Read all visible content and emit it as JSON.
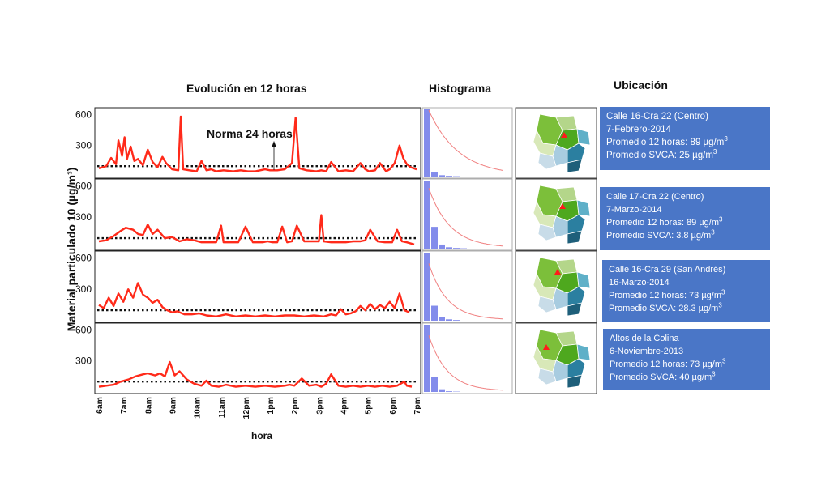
{
  "headers": {
    "evolution": "Evolución en 12 horas",
    "histogram": "Histograma",
    "location": "Ubicación"
  },
  "ylabel": "Material particulado 10 (µg/m³)",
  "xlabel": "hora",
  "norma_label": "Norma 24 horas",
  "colors": {
    "series": "#ff2a1a",
    "hist_bar": "#6d78e8",
    "hist_curve": "#f08080",
    "info_box": "#4a76c7"
  },
  "chart_data": {
    "type": "line",
    "x_ticks": [
      "6am",
      "7am",
      "8am",
      "9am",
      "10am",
      "11am",
      "12pm",
      "1pm",
      "2pm",
      "3pm",
      "4pm",
      "5pm",
      "6pm",
      "7pm"
    ],
    "y_ticks": [
      600,
      300
    ],
    "ylim": [
      0,
      650
    ],
    "norma_value": 100,
    "panels": [
      {
        "name": "Calle 16-Cra 22 (Centro) 7-Febrero-2014",
        "x": [
          6,
          6.3,
          6.5,
          6.7,
          6.8,
          6.95,
          7.05,
          7.15,
          7.3,
          7.45,
          7.6,
          7.8,
          8.0,
          8.2,
          8.4,
          8.6,
          8.75,
          9.0,
          9.25,
          9.35,
          9.45,
          9.7,
          10.0,
          10.2,
          10.4,
          10.6,
          10.8,
          11.1,
          11.5,
          11.8,
          12.1,
          12.4,
          12.6,
          12.8,
          13.0,
          13.3,
          13.6,
          13.9,
          14.05,
          14.2,
          14.5,
          14.9,
          15.1,
          15.3,
          15.5,
          15.8,
          16.1,
          16.4,
          16.7,
          16.9,
          17.05,
          17.3,
          17.5,
          17.75,
          17.9,
          18.1,
          18.3,
          18.45,
          18.6,
          18.75,
          19.0
        ],
        "y": [
          80,
          100,
          180,
          120,
          350,
          200,
          380,
          170,
          290,
          150,
          170,
          110,
          260,
          140,
          90,
          190,
          130,
          70,
          60,
          580,
          70,
          60,
          50,
          150,
          60,
          70,
          50,
          60,
          50,
          60,
          50,
          50,
          60,
          70,
          60,
          60,
          70,
          130,
          570,
          80,
          60,
          50,
          60,
          50,
          140,
          50,
          60,
          50,
          130,
          70,
          50,
          60,
          130,
          50,
          70,
          130,
          300,
          180,
          120,
          90,
          70
        ]
      },
      {
        "name": "Calle 17-Cra 22 (Centro) 7-Marzo-2014",
        "x": [
          6,
          6.3,
          6.6,
          6.9,
          7.1,
          7.4,
          7.6,
          7.8,
          8.0,
          8.2,
          8.4,
          8.7,
          9.0,
          9.3,
          9.6,
          9.9,
          10.2,
          10.5,
          10.8,
          11.0,
          11.1,
          11.3,
          11.7,
          12.0,
          12.3,
          12.5,
          12.7,
          12.9,
          13.1,
          13.3,
          13.5,
          13.7,
          13.9,
          14.1,
          14.4,
          14.7,
          15.0,
          15.1,
          15.2,
          15.5,
          15.8,
          16.1,
          16.4,
          16.7,
          16.9,
          17.1,
          17.4,
          17.7,
          18.0,
          18.2,
          18.4,
          18.6,
          18.9
        ],
        "y": [
          70,
          80,
          120,
          170,
          200,
          180,
          140,
          130,
          230,
          140,
          180,
          100,
          110,
          70,
          90,
          80,
          60,
          60,
          60,
          220,
          60,
          60,
          60,
          210,
          60,
          60,
          60,
          70,
          60,
          60,
          210,
          60,
          70,
          220,
          70,
          70,
          70,
          320,
          70,
          60,
          60,
          60,
          70,
          70,
          80,
          180,
          70,
          60,
          60,
          180,
          70,
          60,
          40
        ]
      },
      {
        "name": "Calle 16-Cra 29 (San Andrés) 16-Marzo-2014",
        "x": [
          6,
          6.2,
          6.4,
          6.6,
          6.8,
          7.0,
          7.2,
          7.4,
          7.6,
          7.8,
          8.0,
          8.2,
          8.4,
          8.6,
          8.8,
          9.0,
          9.2,
          9.5,
          9.8,
          10.1,
          10.4,
          10.8,
          11.2,
          11.6,
          12.0,
          12.4,
          12.8,
          13.2,
          13.6,
          14.0,
          14.4,
          14.8,
          15.2,
          15.5,
          15.7,
          15.9,
          16.1,
          16.3,
          16.5,
          16.7,
          16.9,
          17.1,
          17.3,
          17.5,
          17.7,
          17.9,
          18.1,
          18.3,
          18.5,
          18.7
        ],
        "y": [
          150,
          120,
          220,
          140,
          260,
          180,
          300,
          220,
          360,
          250,
          220,
          170,
          200,
          130,
          100,
          80,
          90,
          60,
          60,
          70,
          50,
          40,
          60,
          40,
          50,
          40,
          50,
          40,
          50,
          50,
          40,
          50,
          40,
          60,
          50,
          110,
          60,
          70,
          90,
          140,
          100,
          160,
          110,
          150,
          120,
          180,
          120,
          260,
          100,
          80
        ]
      },
      {
        "name": "Altos de la Colina 6-Noviembre-2013",
        "x": [
          6,
          6.3,
          6.6,
          6.9,
          7.2,
          7.5,
          7.8,
          8.0,
          8.3,
          8.5,
          8.7,
          8.9,
          9.1,
          9.3,
          9.6,
          9.9,
          10.2,
          10.4,
          10.6,
          10.9,
          11.2,
          11.6,
          12.0,
          12.4,
          12.8,
          13.2,
          13.6,
          13.8,
          14.0,
          14.3,
          14.6,
          14.9,
          15.1,
          15.3,
          15.5,
          15.8,
          16.1,
          16.4,
          16.7,
          17.0,
          17.3,
          17.6,
          17.9,
          18.2,
          18.5,
          18.6,
          18.8
        ],
        "y": [
          50,
          60,
          70,
          100,
          120,
          150,
          170,
          180,
          160,
          180,
          150,
          290,
          160,
          200,
          120,
          80,
          60,
          110,
          60,
          50,
          70,
          50,
          60,
          50,
          60,
          50,
          60,
          70,
          60,
          130,
          60,
          70,
          50,
          80,
          170,
          60,
          50,
          60,
          50,
          60,
          50,
          60,
          50,
          60,
          100,
          60,
          50
        ]
      }
    ],
    "histograms": [
      {
        "bars": [
          1.0,
          0.06,
          0.02,
          0.01,
          0.005,
          0.0,
          0.0,
          0.0,
          0.0
        ],
        "curve_peak": 1.0,
        "curve_decay": 0.25
      },
      {
        "bars": [
          1.0,
          0.32,
          0.06,
          0.02,
          0.01,
          0.005,
          0.0,
          0.0,
          0.0
        ],
        "curve_peak": 0.9,
        "curve_decay": 0.35
      },
      {
        "bars": [
          1.0,
          0.22,
          0.05,
          0.02,
          0.01,
          0.0,
          0.0,
          0.0,
          0.0
        ],
        "curve_peak": 0.85,
        "curve_decay": 0.4
      },
      {
        "bars": [
          1.0,
          0.22,
          0.04,
          0.01,
          0.005,
          0.0,
          0.0,
          0.0,
          0.0
        ],
        "curve_peak": 0.85,
        "curve_decay": 0.4
      }
    ]
  },
  "info_boxes": [
    {
      "line1": "Calle 16-Cra 22  (Centro)",
      "line2": "7-Febrero-2014",
      "line3": "Promedio 12 horas: 89 µg/m",
      "line4": "Promedio SVCA: 25 µg/m",
      "sup": "3"
    },
    {
      "line1": "Calle 17-Cra 22 (Centro)",
      "line2": "7-Marzo-2014",
      "line3": "Promedio 12 horas: 89 µg/m",
      "line4": "Promedio SVCA: 3.8 µg/m",
      "sup": "3"
    },
    {
      "line1": "Calle 16-Cra 29 (San Andrés)",
      "line2": "16-Marzo-2014",
      "line3": "Promedio 12 horas: 73 µg/m",
      "line4": "Promedio SVCA: 28.3 µg/m",
      "sup": "3"
    },
    {
      "line1": "Altos de la Colina",
      "line2": "6-Noviembre-2013",
      "line3": "Promedio 12 horas: 73 µg/m",
      "line4": "Promedio SVCA: 40 µg/m",
      "sup": "3"
    }
  ],
  "map_markers": [
    {
      "icon": "red-triangle-icon"
    },
    {
      "icon": "red-triangle-icon"
    },
    {
      "icon": "red-triangle-icon"
    },
    {
      "icon": "red-triangle-icon"
    }
  ]
}
